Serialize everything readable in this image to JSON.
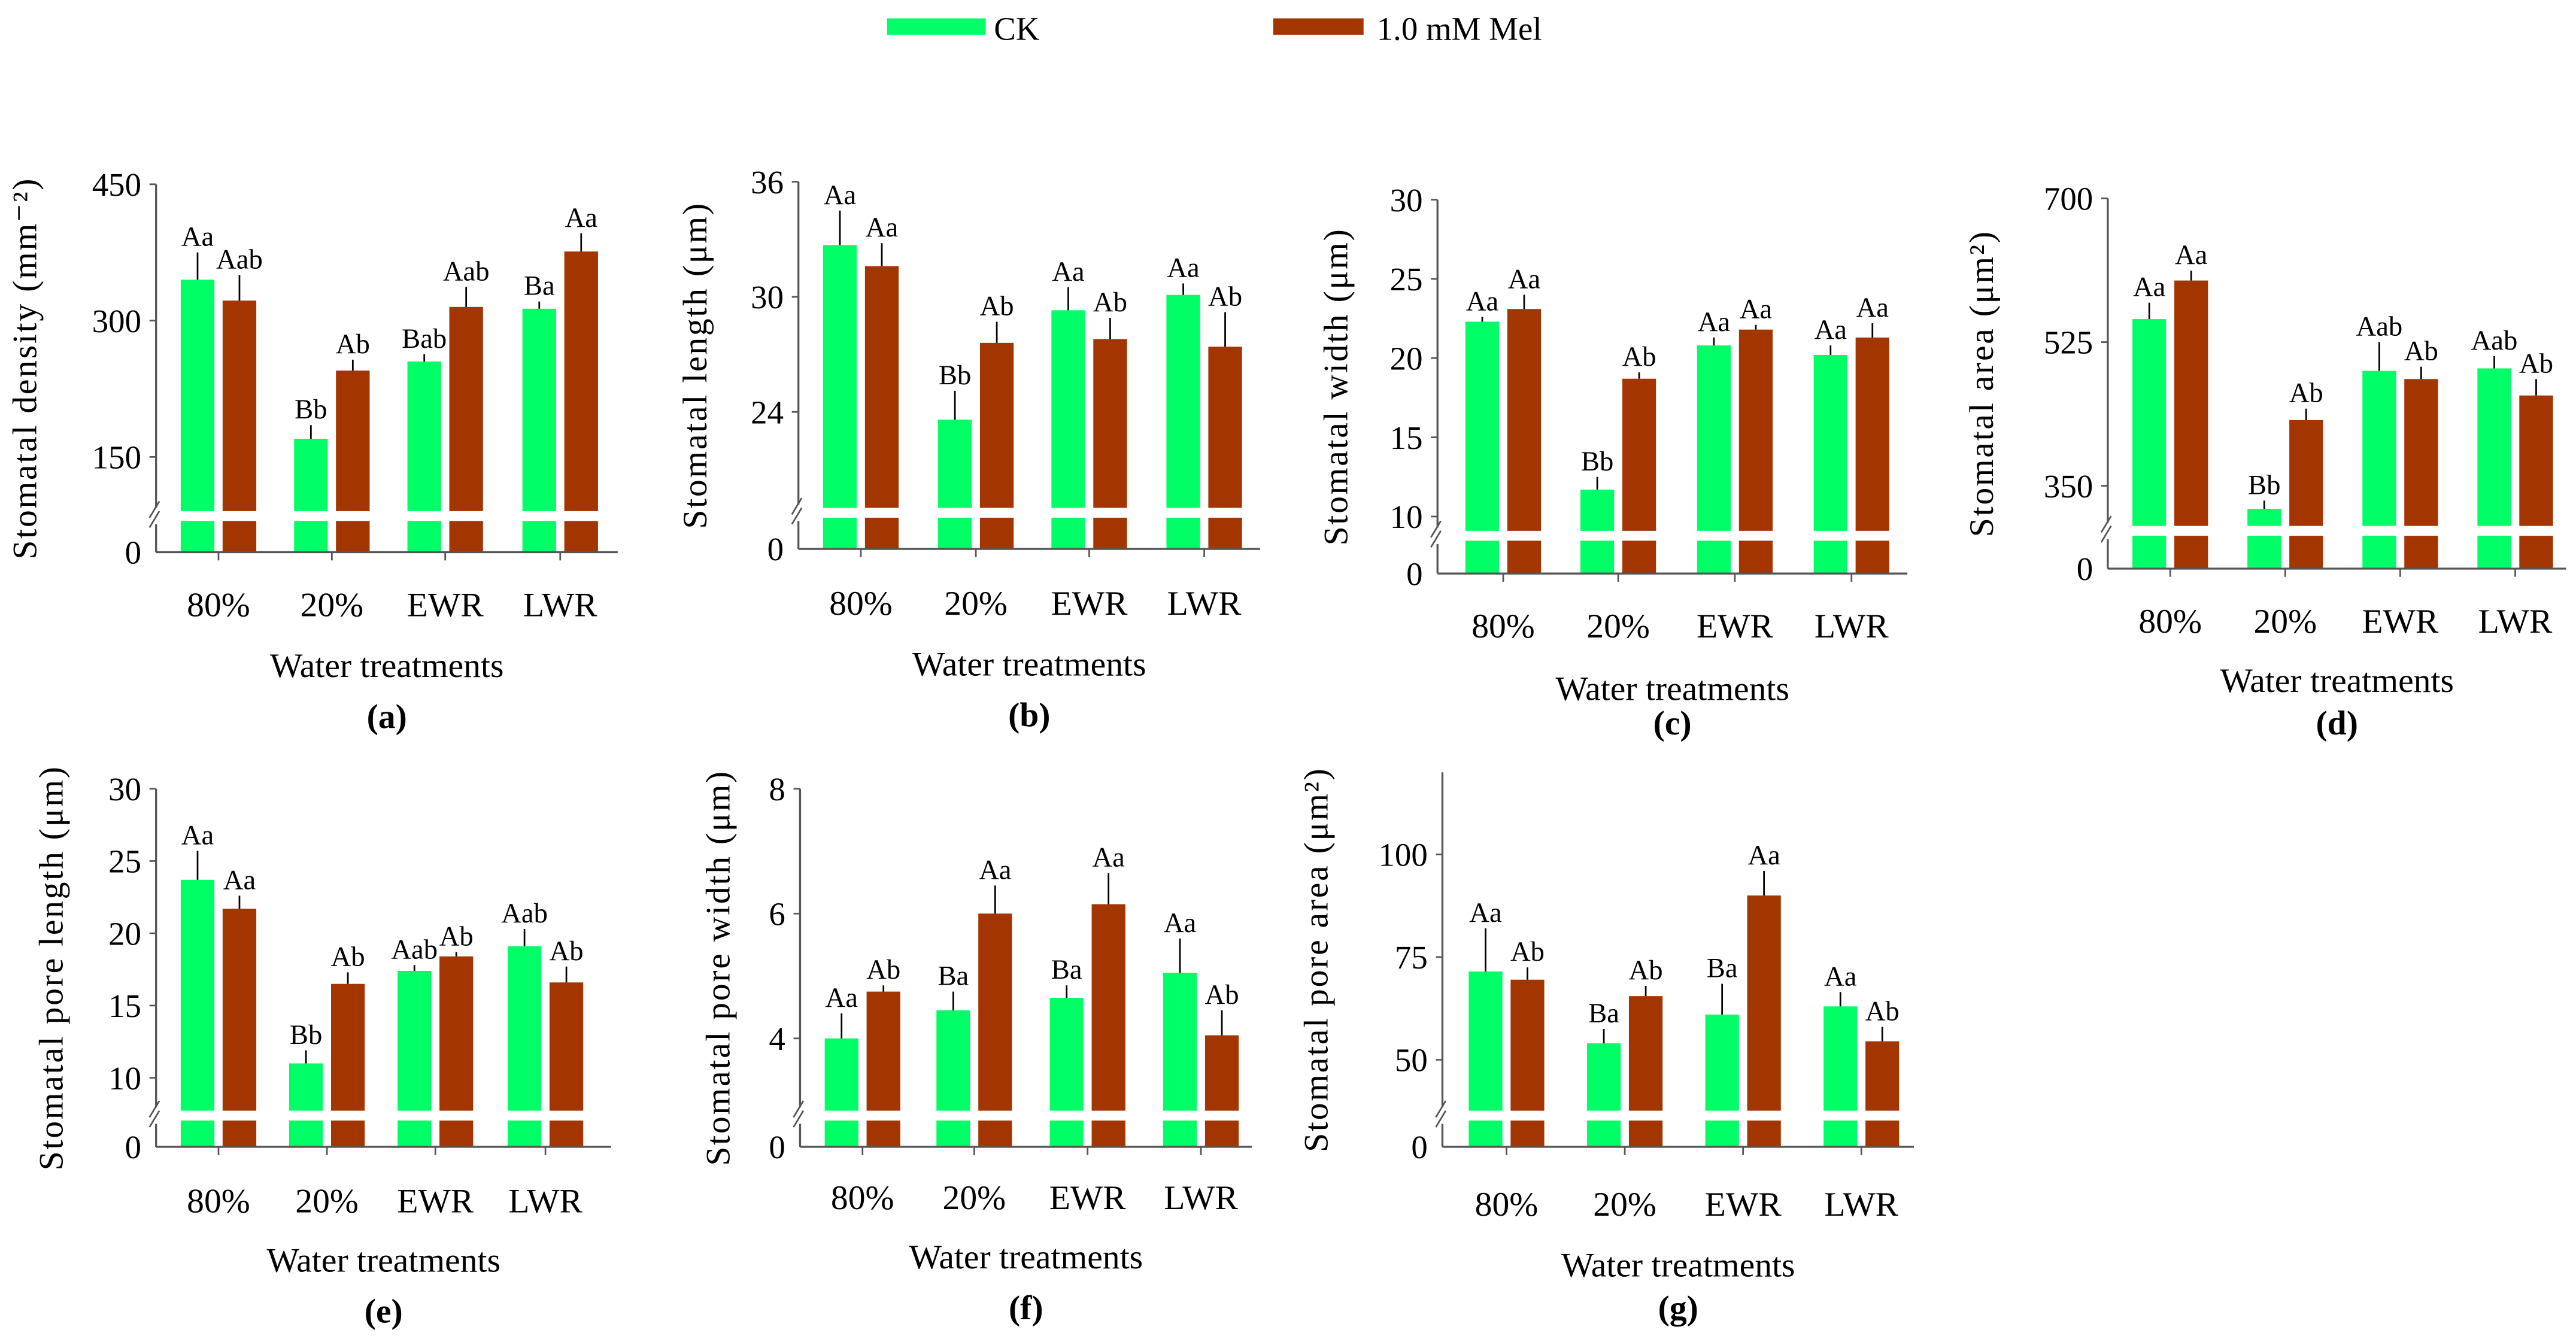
{
  "legend": {
    "items": [
      {
        "name": "CK",
        "color": "#00ff66"
      },
      {
        "name": "1.0 mM Mel",
        "color": "#a33500"
      }
    ]
  },
  "chart_data": [
    {
      "type": "bar",
      "panel": "(a)",
      "ylabel": "Stomatal density (mm⁻²)",
      "xlabel": "Water treatments",
      "categories": [
        "80%",
        "20%",
        "EWR",
        "LWR"
      ],
      "ylim": [
        0,
        450
      ],
      "yticks": [
        "0",
        "150",
        "300",
        "450"
      ],
      "ytick_values": [
        0,
        150,
        300,
        450
      ],
      "axis_break": true,
      "series": [
        {
          "name": "CK",
          "values": [
            345,
            170,
            255,
            313
          ],
          "errors": [
            30,
            15,
            8,
            8
          ],
          "labels": [
            "Aa",
            "Bb",
            "Bab",
            "Ba"
          ]
        },
        {
          "name": "1.0 mM Mel",
          "values": [
            322,
            245,
            315,
            376
          ],
          "errors": [
            28,
            12,
            22,
            20
          ],
          "labels": [
            "Aab",
            "Ab",
            "Aab",
            "Aa"
          ]
        }
      ]
    },
    {
      "type": "bar",
      "panel": "(b)",
      "ylabel": "Stomatal length (μm)",
      "xlabel": "Water treatments",
      "categories": [
        "80%",
        "20%",
        "EWR",
        "LWR"
      ],
      "ylim": [
        0,
        36
      ],
      "yticks": [
        "0",
        "24",
        "30",
        "36"
      ],
      "ytick_values": [
        0,
        24,
        30,
        36
      ],
      "axis_break": true,
      "series": [
        {
          "name": "CK",
          "values": [
            32.7,
            23.6,
            29.3,
            30.1
          ],
          "errors": [
            1.8,
            1.5,
            1.2,
            0.6
          ],
          "labels": [
            "Aa",
            "Bb",
            "Aa",
            "Aa"
          ]
        },
        {
          "name": "1.0 mM Mel",
          "values": [
            31.6,
            27.6,
            27.8,
            27.4
          ],
          "errors": [
            1.2,
            1.1,
            1.1,
            1.8
          ],
          "labels": [
            "Aa",
            "Ab",
            "Ab",
            "Ab"
          ]
        }
      ]
    },
    {
      "type": "bar",
      "panel": "(c)",
      "ylabel": "Stomatal width (μm)",
      "xlabel": "Water treatments",
      "categories": [
        "80%",
        "20%",
        "EWR",
        "LWR"
      ],
      "ylim": [
        0,
        30
      ],
      "yticks": [
        "0",
        "10",
        "15",
        "20",
        "25",
        "30"
      ],
      "ytick_values": [
        0,
        10,
        15,
        20,
        25,
        30
      ],
      "axis_break": true,
      "series": [
        {
          "name": "CK",
          "values": [
            22.3,
            11.7,
            20.8,
            20.2
          ],
          "errors": [
            0.3,
            0.8,
            0.5,
            0.6
          ],
          "labels": [
            "Aa",
            "Bb",
            "Aa",
            "Aa"
          ]
        },
        {
          "name": "1.0 mM Mel",
          "values": [
            23.1,
            18.7,
            21.8,
            21.3
          ],
          "errors": [
            0.9,
            0.4,
            0.3,
            0.9
          ],
          "labels": [
            "Aa",
            "Ab",
            "Aa",
            "Aa"
          ]
        }
      ]
    },
    {
      "type": "bar",
      "panel": "(d)",
      "ylabel": "Stomatal area (μm²)",
      "xlabel": "Water treatments",
      "categories": [
        "80%",
        "20%",
        "EWR",
        "LWR"
      ],
      "ylim": [
        0,
        700
      ],
      "yticks": [
        "0",
        "350",
        "525",
        "700"
      ],
      "ytick_values": [
        0,
        350,
        525,
        700
      ],
      "axis_break": true,
      "series": [
        {
          "name": "CK",
          "values": [
            553,
            322,
            490,
            493
          ],
          "errors": [
            20,
            10,
            35,
            15
          ],
          "labels": [
            "Aa",
            "Bb",
            "Aab",
            "Aab"
          ]
        },
        {
          "name": "1.0 mM Mel",
          "values": [
            600,
            430,
            480,
            460
          ],
          "errors": [
            12,
            14,
            15,
            20
          ],
          "labels": [
            "Aa",
            "Ab",
            "Ab",
            "Ab"
          ]
        }
      ]
    },
    {
      "type": "bar",
      "panel": "(e)",
      "ylabel": "Stomatal pore length (μm)",
      "xlabel": "Water treatments",
      "categories": [
        "80%",
        "20%",
        "EWR",
        "LWR"
      ],
      "ylim": [
        0,
        30
      ],
      "yticks": [
        "0",
        "10",
        "15",
        "20",
        "25",
        "30"
      ],
      "ytick_values": [
        0,
        10,
        15,
        20,
        25,
        30
      ],
      "axis_break": true,
      "series": [
        {
          "name": "CK",
          "values": [
            23.7,
            11.0,
            17.4,
            19.1
          ],
          "errors": [
            2.0,
            0.9,
            0.4,
            1.2
          ],
          "labels": [
            "Aa",
            "Bb",
            "Aab",
            "Aab"
          ]
        },
        {
          "name": "1.0 mM Mel",
          "values": [
            21.7,
            16.5,
            18.4,
            16.6
          ],
          "errors": [
            0.9,
            0.8,
            0.3,
            1.1
          ],
          "labels": [
            "Aa",
            "Ab",
            "Ab",
            "Ab"
          ]
        }
      ]
    },
    {
      "type": "bar",
      "panel": "(f)",
      "ylabel": "Stomatal pore width (μm)",
      "xlabel": "Water treatments",
      "categories": [
        "80%",
        "20%",
        "EWR",
        "LWR"
      ],
      "ylim": [
        0,
        8
      ],
      "yticks": [
        "0",
        "4",
        "6",
        "8"
      ],
      "ytick_values": [
        0,
        4,
        6,
        8
      ],
      "axis_break": true,
      "series": [
        {
          "name": "CK",
          "values": [
            4.0,
            4.45,
            4.65,
            5.05
          ],
          "errors": [
            0.4,
            0.3,
            0.2,
            0.55
          ],
          "labels": [
            "Aa",
            "Ba",
            "Ba",
            "Aa"
          ]
        },
        {
          "name": "1.0 mM Mel",
          "values": [
            4.75,
            6.0,
            6.15,
            4.05
          ],
          "errors": [
            0.1,
            0.45,
            0.5,
            0.4
          ],
          "labels": [
            "Ab",
            "Aa",
            "Aa",
            "Ab"
          ]
        }
      ]
    },
    {
      "type": "bar",
      "panel": "(g)",
      "ylabel": "Stomatal pore area (μm²)",
      "xlabel": "Water treatments",
      "categories": [
        "80%",
        "20%",
        "EWR",
        "LWR"
      ],
      "ylim": [
        0,
        120
      ],
      "yticks": [
        "0",
        "50",
        "75",
        "100"
      ],
      "ytick_values": [
        0,
        50,
        75,
        100
      ],
      "axis_break": true,
      "series": [
        {
          "name": "CK",
          "values": [
            71.5,
            54,
            61,
            63
          ],
          "errors": [
            10.5,
            3.5,
            7.5,
            3.5
          ],
          "labels": [
            "Aa",
            "Ba",
            "Ba",
            "Aa"
          ]
        },
        {
          "name": "1.0 mM Mel",
          "values": [
            69.5,
            65.5,
            90,
            54.5
          ],
          "errors": [
            3,
            2.5,
            6,
            3.5
          ],
          "labels": [
            "Ab",
            "Ab",
            "Aa",
            "Ab"
          ]
        }
      ]
    }
  ]
}
